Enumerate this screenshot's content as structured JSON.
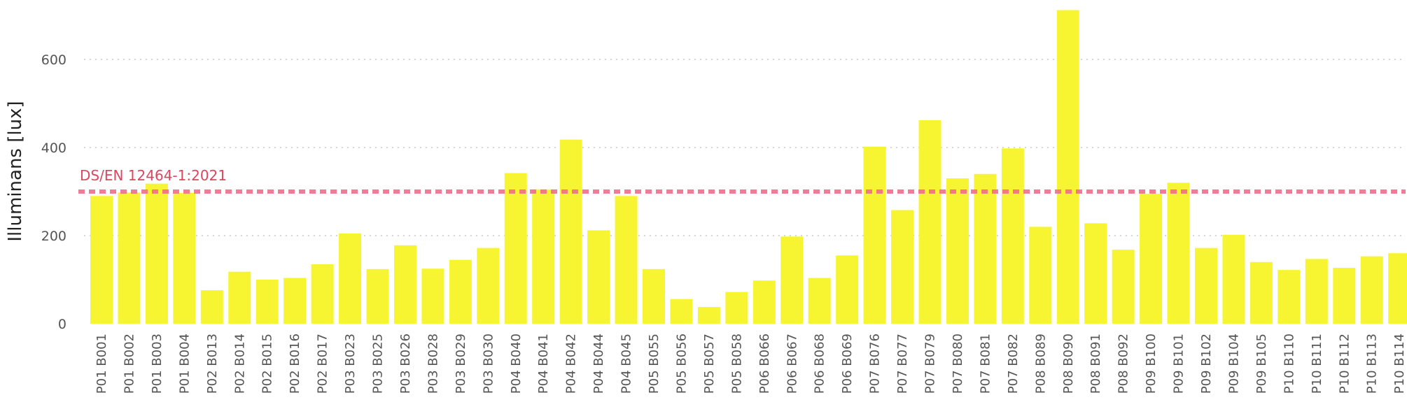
{
  "chart_data": {
    "type": "bar",
    "ylabel": "Illuminans [lux]",
    "xlabel": "",
    "ylim": [
      0,
      720
    ],
    "yticks": [
      0,
      200,
      400,
      600
    ],
    "grid": "horizontal-dotted",
    "bar_color": "#f7f532",
    "categories": [
      "P01 B001",
      "P01 B002",
      "P01 B003",
      "P01 B004",
      "P02 B013",
      "P02 B014",
      "P02 B015",
      "P02 B016",
      "P02 B017",
      "P03 B023",
      "P03 B025",
      "P03 B026",
      "P03 B028",
      "P03 B029",
      "P03 B030",
      "P04 B040",
      "P04 B041",
      "P04 B042",
      "P04 B044",
      "P04 B045",
      "P05 B055",
      "P05 B056",
      "P05 B057",
      "P05 B058",
      "P06 B066",
      "P06 B067",
      "P06 B068",
      "P06 B069",
      "P07 B076",
      "P07 B077",
      "P07 B079",
      "P07 B080",
      "P07 B081",
      "P07 B082",
      "P08 B089",
      "P08 B090",
      "P08 B091",
      "P08 B092",
      "P09 B100",
      "P09 B101",
      "P09 B102",
      "P09 B104",
      "P09 B105",
      "P10 B110",
      "P10 B111",
      "P10 B112",
      "P10 B113",
      "P10 B114"
    ],
    "values": [
      290,
      298,
      318,
      297,
      76,
      118,
      100,
      104,
      135,
      205,
      124,
      178,
      125,
      145,
      172,
      342,
      305,
      418,
      212,
      290,
      124,
      56,
      38,
      72,
      98,
      198,
      104,
      155,
      402,
      258,
      462,
      330,
      340,
      398,
      220,
      712,
      228,
      168,
      295,
      320,
      172,
      202,
      140,
      122,
      147,
      127,
      153,
      160
    ],
    "reference_line": {
      "label": "DS/EN 12464-1:2021",
      "value": 300,
      "color": "#f06e8c",
      "label_color": "#e0455f"
    }
  }
}
